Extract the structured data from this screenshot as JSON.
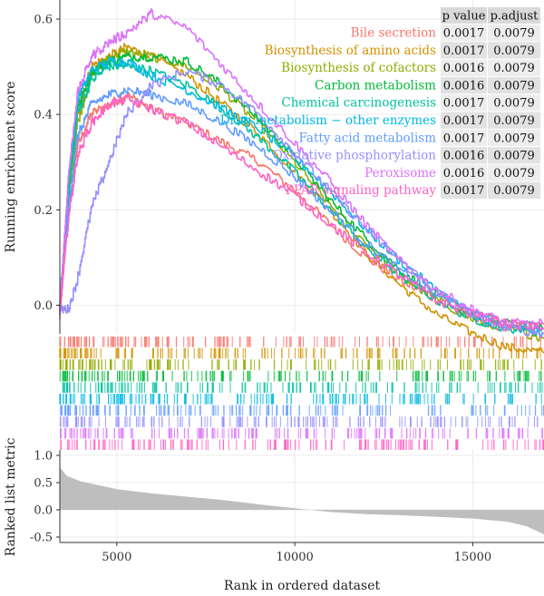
{
  "chart_data": {
    "type": "line",
    "title": "",
    "xlabel": "Rank in ordered dataset",
    "ylabel_top": "Running enrichment score",
    "ylabel_bottom": "Ranked list metric",
    "xlim": [
      3400,
      17000
    ],
    "x_ticks": [
      5000,
      10000,
      15000
    ],
    "x_tick_labels": [
      "5000",
      "10000",
      "15000"
    ],
    "es_ylim": [
      -0.06,
      0.64
    ],
    "es_ticks": [
      0.0,
      0.2,
      0.4,
      0.6
    ],
    "es_tick_labels": [
      "0.0",
      "0.2",
      "0.4",
      "0.6"
    ],
    "metric_ylim": [
      -0.6,
      1.1
    ],
    "metric_ticks": [
      1.0,
      0.5,
      0.0,
      -0.5
    ],
    "metric_tick_labels": [
      "1.0",
      "0.5",
      "0.0",
      "-0.5"
    ],
    "metric_curve": {
      "x": [
        3400,
        3600,
        4000,
        5000,
        6000,
        7000,
        8000,
        9000,
        10000,
        11000,
        12000,
        13000,
        14000,
        15000,
        16000,
        16500,
        17000
      ],
      "y": [
        0.78,
        0.62,
        0.52,
        0.38,
        0.3,
        0.24,
        0.18,
        0.1,
        0.03,
        -0.04,
        -0.08,
        -0.1,
        -0.13,
        -0.16,
        -0.22,
        -0.3,
        -0.45
      ]
    },
    "table_headers": [
      "p value",
      "p.adjust"
    ],
    "series": [
      {
        "name": "Bile secretion",
        "color": "#F8766D",
        "p_value": "0.0017",
        "p_adjust": "0.0079",
        "x": [
          3400,
          3650,
          3900,
          4300,
          4800,
          5300,
          6000,
          7000,
          8000,
          9000,
          10000,
          11000,
          12000,
          13000,
          14000,
          15000,
          16000,
          17000
        ],
        "y": [
          -0.03,
          0.2,
          0.33,
          0.4,
          0.42,
          0.44,
          0.41,
          0.38,
          0.34,
          0.3,
          0.24,
          0.17,
          0.1,
          0.05,
          0.01,
          -0.03,
          -0.05,
          -0.04
        ]
      },
      {
        "name": "Biosynthesis of amino acids",
        "color": "#D39200",
        "p_value": "0.0017",
        "p_adjust": "0.0079",
        "x": [
          3400,
          3650,
          3900,
          4300,
          4800,
          5300,
          6000,
          7000,
          8000,
          9000,
          10000,
          11000,
          12000,
          13000,
          14000,
          15000,
          16000,
          17000
        ],
        "y": [
          -0.02,
          0.25,
          0.4,
          0.5,
          0.52,
          0.54,
          0.52,
          0.48,
          0.42,
          0.36,
          0.28,
          0.2,
          0.11,
          0.04,
          -0.02,
          -0.06,
          -0.09,
          -0.1
        ]
      },
      {
        "name": "Biosynthesis of cofactors",
        "color": "#93AA00",
        "p_value": "0.0016",
        "p_adjust": "0.0079",
        "x": [
          3400,
          3650,
          3900,
          4300,
          4800,
          5300,
          6000,
          7000,
          8000,
          9000,
          10000,
          11000,
          12000,
          13000,
          14000,
          15000,
          16000,
          17000
        ],
        "y": [
          -0.02,
          0.22,
          0.38,
          0.48,
          0.52,
          0.53,
          0.52,
          0.5,
          0.45,
          0.38,
          0.3,
          0.21,
          0.13,
          0.06,
          0.01,
          -0.03,
          -0.05,
          -0.07
        ]
      },
      {
        "name": "Carbon metabolism",
        "color": "#00BA38",
        "p_value": "0.0016",
        "p_adjust": "0.0079",
        "x": [
          3400,
          3650,
          3900,
          4300,
          4800,
          5300,
          6000,
          7000,
          8000,
          9000,
          10000,
          11000,
          12000,
          13000,
          14000,
          15000,
          16000,
          17000
        ],
        "y": [
          -0.02,
          0.24,
          0.41,
          0.49,
          0.51,
          0.52,
          0.52,
          0.51,
          0.46,
          0.39,
          0.31,
          0.22,
          0.14,
          0.07,
          0.02,
          -0.02,
          -0.04,
          -0.05
        ]
      },
      {
        "name": "Chemical carcinogenesis",
        "color": "#00C19F",
        "p_value": "0.0017",
        "p_adjust": "0.0079",
        "x": [
          3400,
          3650,
          3900,
          4300,
          4800,
          5300,
          6000,
          7000,
          8000,
          9000,
          10000,
          11000,
          12000,
          13000,
          14000,
          15000,
          16000,
          17000
        ],
        "y": [
          -0.02,
          0.23,
          0.4,
          0.47,
          0.5,
          0.5,
          0.49,
          0.46,
          0.41,
          0.35,
          0.28,
          0.2,
          0.12,
          0.06,
          0.01,
          -0.03,
          -0.05,
          -0.05
        ]
      },
      {
        "name": "Drug metabolism − other enzymes",
        "color": "#00B9E3",
        "p_value": "0.0017",
        "p_adjust": "0.0079",
        "x": [
          3400,
          3650,
          3900,
          4300,
          4800,
          5300,
          6000,
          7000,
          8000,
          9000,
          10000,
          11000,
          12000,
          13000,
          14000,
          15000,
          16000,
          17000
        ],
        "y": [
          -0.01,
          0.26,
          0.43,
          0.49,
          0.51,
          0.51,
          0.48,
          0.45,
          0.41,
          0.37,
          0.31,
          0.24,
          0.16,
          0.09,
          0.03,
          -0.02,
          -0.05,
          -0.06
        ]
      },
      {
        "name": "Fatty acid metabolism",
        "color": "#619CFF",
        "p_value": "0.0017",
        "p_adjust": "0.0079",
        "x": [
          3400,
          3650,
          3900,
          4300,
          4800,
          5300,
          6000,
          7000,
          8000,
          9000,
          10000,
          11000,
          12000,
          13000,
          14000,
          15000,
          16000,
          17000
        ],
        "y": [
          -0.02,
          0.2,
          0.35,
          0.42,
          0.44,
          0.45,
          0.44,
          0.42,
          0.38,
          0.33,
          0.27,
          0.2,
          0.13,
          0.07,
          0.02,
          -0.02,
          -0.04,
          -0.05
        ]
      },
      {
        "name": "Oxidative phosphorylation",
        "color": "#9590FF",
        "p_value": "0.0016",
        "p_adjust": "0.0079",
        "x": [
          3400,
          3650,
          3900,
          4300,
          4800,
          5300,
          6000,
          7000,
          8000,
          9000,
          10000,
          11000,
          12000,
          13000,
          14000,
          15000,
          16000,
          17000
        ],
        "y": [
          -0.01,
          -0.01,
          0.05,
          0.2,
          0.3,
          0.4,
          0.46,
          0.49,
          0.46,
          0.4,
          0.32,
          0.24,
          0.16,
          0.09,
          0.03,
          -0.02,
          -0.05,
          -0.06
        ]
      },
      {
        "name": "Peroxisome",
        "color": "#DB72FB",
        "p_value": "0.0016",
        "p_adjust": "0.0079",
        "x": [
          3400,
          3650,
          3900,
          4300,
          4800,
          5300,
          6000,
          7000,
          8000,
          9000,
          10000,
          11000,
          12000,
          13000,
          14000,
          15000,
          16000,
          17000
        ],
        "y": [
          -0.02,
          0.27,
          0.44,
          0.52,
          0.55,
          0.57,
          0.61,
          0.58,
          0.5,
          0.42,
          0.34,
          0.26,
          0.17,
          0.09,
          0.03,
          -0.01,
          -0.04,
          -0.04
        ]
      },
      {
        "name": "PPAR signaling pathway",
        "color": "#FF61C3",
        "p_value": "0.0017",
        "p_adjust": "0.0079",
        "x": [
          3400,
          3650,
          3900,
          4300,
          4800,
          5300,
          6000,
          7000,
          8000,
          9000,
          10000,
          11000,
          12000,
          13000,
          14000,
          15000,
          16000,
          17000
        ],
        "y": [
          -0.02,
          0.18,
          0.31,
          0.38,
          0.42,
          0.43,
          0.41,
          0.38,
          0.33,
          0.28,
          0.23,
          0.17,
          0.11,
          0.06,
          0.01,
          -0.02,
          -0.04,
          -0.05
        ]
      }
    ]
  }
}
